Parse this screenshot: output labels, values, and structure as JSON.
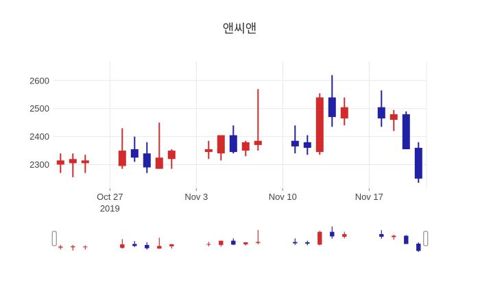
{
  "chart_data": {
    "type": "candlestick",
    "title": "앤씨앤",
    "grid": true,
    "legend": "none",
    "rangeslider": true,
    "ylim": [
      2216,
      2668
    ],
    "y_ticks": [
      2300,
      2400,
      2500,
      2600
    ],
    "x_ticks": [
      {
        "label": "Oct 27",
        "sublabel": "2019",
        "day": 4
      },
      {
        "label": "Nov 3",
        "sublabel": "",
        "day": 11
      },
      {
        "label": "Nov 10",
        "sublabel": "",
        "day": 18
      },
      {
        "label": "Nov 17",
        "sublabel": "",
        "day": 25
      }
    ],
    "colors": {
      "increasing": "#d32b2b",
      "decreasing": "#2121a6",
      "grid": "#e8e8e8",
      "plot_edge": "#ececec",
      "tick_mark": "#888888",
      "tick_text": "#444444",
      "title_text": "#333333",
      "handle_fill": "#ffffff",
      "handle_border": "#777777"
    },
    "candles": [
      {
        "date": "2019-10-23",
        "open": 2300,
        "high": 2340,
        "low": 2270,
        "close": 2315
      },
      {
        "date": "2019-10-24",
        "open": 2305,
        "high": 2340,
        "low": 2255,
        "close": 2320
      },
      {
        "date": "2019-10-25",
        "open": 2305,
        "high": 2335,
        "low": 2270,
        "close": 2315
      },
      {
        "date": "2019-10-28",
        "open": 2295,
        "high": 2430,
        "low": 2285,
        "close": 2350
      },
      {
        "date": "2019-10-29",
        "open": 2355,
        "high": 2400,
        "low": 2310,
        "close": 2325
      },
      {
        "date": "2019-10-30",
        "open": 2340,
        "high": 2380,
        "low": 2270,
        "close": 2290
      },
      {
        "date": "2019-10-31",
        "open": 2285,
        "high": 2450,
        "low": 2285,
        "close": 2325
      },
      {
        "date": "2019-11-01",
        "open": 2320,
        "high": 2355,
        "low": 2285,
        "close": 2350
      },
      {
        "date": "2019-11-04",
        "open": 2345,
        "high": 2385,
        "low": 2320,
        "close": 2355
      },
      {
        "date": "2019-11-05",
        "open": 2340,
        "high": 2405,
        "low": 2315,
        "close": 2405
      },
      {
        "date": "2019-11-06",
        "open": 2405,
        "high": 2440,
        "low": 2340,
        "close": 2345
      },
      {
        "date": "2019-11-07",
        "open": 2350,
        "high": 2385,
        "low": 2330,
        "close": 2380
      },
      {
        "date": "2019-11-08",
        "open": 2370,
        "high": 2570,
        "low": 2350,
        "close": 2385
      },
      {
        "date": "2019-11-11",
        "open": 2385,
        "high": 2440,
        "low": 2340,
        "close": 2365
      },
      {
        "date": "2019-11-12",
        "open": 2380,
        "high": 2405,
        "low": 2335,
        "close": 2360
      },
      {
        "date": "2019-11-13",
        "open": 2345,
        "high": 2555,
        "low": 2335,
        "close": 2540
      },
      {
        "date": "2019-11-14",
        "open": 2540,
        "high": 2620,
        "low": 2435,
        "close": 2470
      },
      {
        "date": "2019-11-15",
        "open": 2465,
        "high": 2540,
        "low": 2440,
        "close": 2505
      },
      {
        "date": "2019-11-18",
        "open": 2505,
        "high": 2565,
        "low": 2435,
        "close": 2465
      },
      {
        "date": "2019-11-19",
        "open": 2460,
        "high": 2495,
        "low": 2420,
        "close": 2480
      },
      {
        "date": "2019-11-20",
        "open": 2480,
        "high": 2490,
        "low": 2355,
        "close": 2355
      },
      {
        "date": "2019-11-21",
        "open": 2360,
        "high": 2380,
        "low": 2235,
        "close": 2250
      }
    ]
  }
}
